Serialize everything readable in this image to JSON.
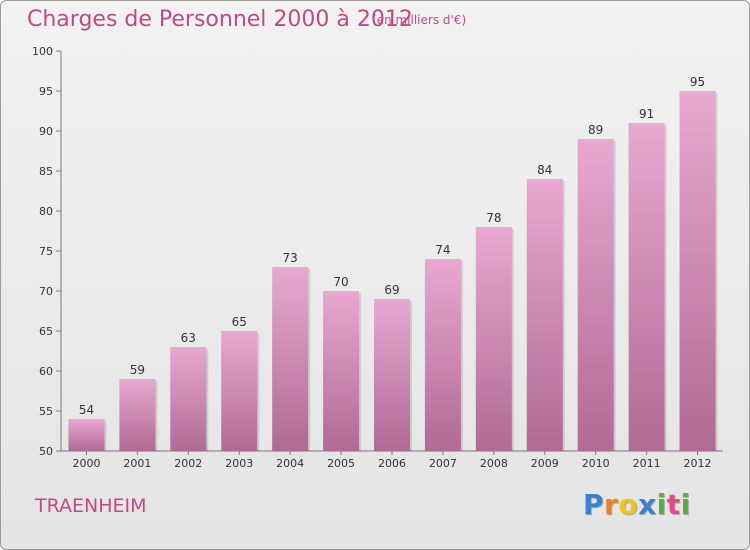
{
  "header": {
    "title": "Charges de Personnel 2000 à 2012",
    "subtitle": "(en milliers d'€)"
  },
  "footer": {
    "town": "TRAENHEIM",
    "logo_letters": [
      "P",
      "r",
      "o",
      "x",
      "i",
      "t",
      "i"
    ],
    "logo_colors": [
      "#3a7fd0",
      "#e8821e",
      "#f1c21b",
      "#3a7fd0",
      "#56b03c",
      "#e24a8d",
      "#56b03c"
    ]
  },
  "colors": {
    "accent": "#c04a86",
    "bar_top": "#e8a8d0",
    "bar_bottom": "#b06a94"
  },
  "chart_data": {
    "type": "bar",
    "title": "Charges de Personnel 2000 à 2012",
    "subtitle": "(en milliers d'€)",
    "categories": [
      "2000",
      "2001",
      "2002",
      "2003",
      "2004",
      "2005",
      "2006",
      "2007",
      "2008",
      "2009",
      "2010",
      "2011",
      "2012"
    ],
    "values": [
      54,
      59,
      63,
      65,
      73,
      70,
      69,
      74,
      78,
      84,
      89,
      91,
      95
    ],
    "ylim": [
      50,
      100
    ],
    "yticks": [
      50,
      55,
      60,
      65,
      70,
      75,
      80,
      85,
      90,
      95,
      100
    ],
    "grid": false,
    "legend": "none"
  }
}
